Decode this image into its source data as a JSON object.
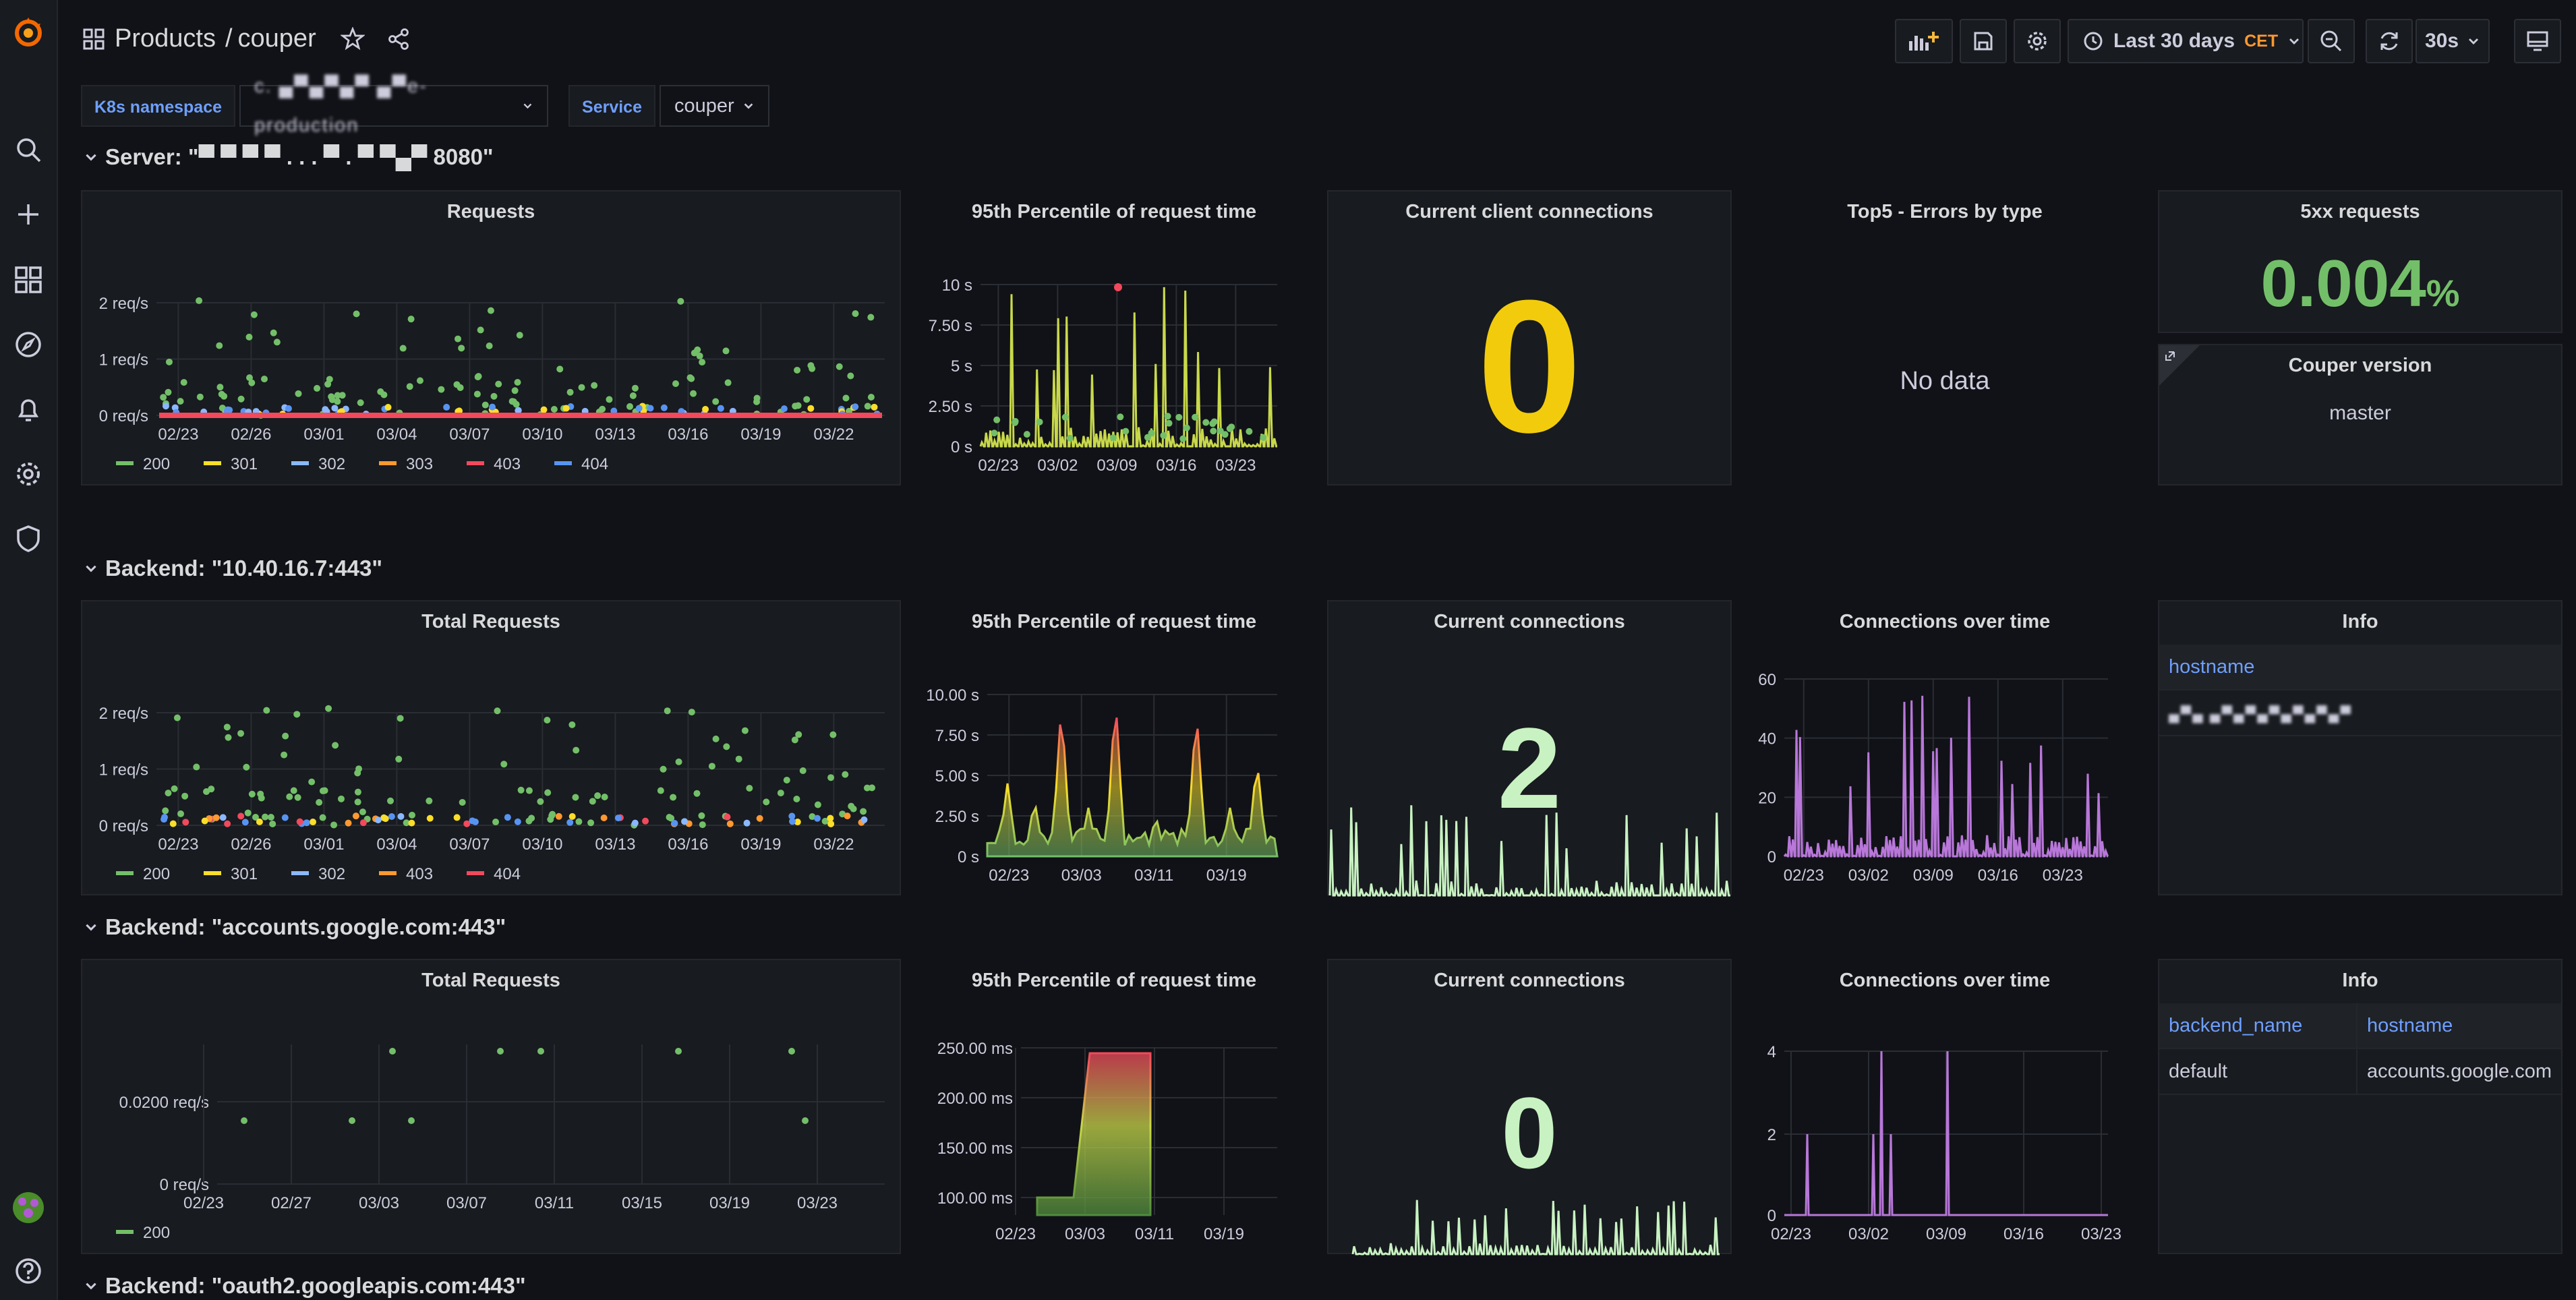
{
  "breadcrumb": {
    "folder": "Products",
    "separator": "/",
    "dashboard": "couper"
  },
  "toolbar": {
    "time_range": "Last 30 days",
    "timezone": "CET",
    "refresh": "30s"
  },
  "variables": [
    {
      "label": "K8s namespace",
      "value": "c.  ▄▀▄▀▄▀  ▄▀e-production"
    },
    {
      "label": "Service",
      "value": "couper"
    }
  ],
  "rows": {
    "server": "Server: \"▀ ▀   ▀  ▀ . . . ▀ . ▀   ▀▄▀   8080\"",
    "backend1": "Backend: \"10.40.16.7:443\"",
    "backend2": "Backend: \"accounts.google.com:443\"",
    "backend3": "Backend: \"oauth2.googleapis.com:443\""
  },
  "panels": {
    "requests": {
      "title": "Requests",
      "y_ticks": [
        "2 req/s",
        "1 req/s",
        "0 req/s"
      ],
      "x_ticks": [
        "02/23",
        "02/26",
        "03/01",
        "03/04",
        "03/07",
        "03/10",
        "03/13",
        "03/16",
        "03/19",
        "03/22"
      ],
      "legend": [
        {
          "name": "200",
          "color": "#73bf69"
        },
        {
          "name": "301",
          "color": "#fade2a"
        },
        {
          "name": "302",
          "color": "#8ab8ff"
        },
        {
          "name": "303",
          "color": "#ff9830"
        },
        {
          "name": "403",
          "color": "#f2495c"
        },
        {
          "name": "404",
          "color": "#5794f2"
        }
      ]
    },
    "p95_server": {
      "title": "95th Percentile of request time",
      "y_ticks": [
        "10 s",
        "7.50 s",
        "5 s",
        "2.50 s",
        "0 s"
      ],
      "x_ticks": [
        "02/23",
        "03/02",
        "03/09",
        "03/16",
        "03/23"
      ]
    },
    "client_conn": {
      "title": "Current client connections",
      "value": "0",
      "color": "#f2cc0c"
    },
    "top5": {
      "title": "Top5 - Errors by type",
      "no_data": "No data"
    },
    "s5xx": {
      "title": "5xx requests",
      "value": "0.004",
      "unit": "%",
      "color": "#73bf69"
    },
    "couper_version": {
      "title": "Couper version",
      "value": "master"
    },
    "b1_total": {
      "title": "Total Requests",
      "y_ticks": [
        "2 req/s",
        "1 req/s",
        "0 req/s"
      ],
      "x_ticks": [
        "02/23",
        "02/26",
        "03/01",
        "03/04",
        "03/07",
        "03/10",
        "03/13",
        "03/16",
        "03/19",
        "03/22"
      ],
      "legend": [
        {
          "name": "200",
          "color": "#73bf69"
        },
        {
          "name": "301",
          "color": "#fade2a"
        },
        {
          "name": "302",
          "color": "#8ab8ff"
        },
        {
          "name": "403",
          "color": "#ff9830"
        },
        {
          "name": "404",
          "color": "#f2495c"
        }
      ]
    },
    "b1_p95": {
      "title": "95th Percentile of request time",
      "y_ticks": [
        "10.00 s",
        "7.50 s",
        "5.00 s",
        "2.50 s",
        "0 s"
      ],
      "x_ticks": [
        "02/23",
        "03/03",
        "03/11",
        "03/19"
      ]
    },
    "b1_conn": {
      "title": "Current connections",
      "value": "2",
      "color": "#c8f2c2"
    },
    "b1_conn_time": {
      "title": "Connections over time",
      "y_ticks": [
        "60",
        "40",
        "20",
        "0"
      ],
      "x_ticks": [
        "02/23",
        "03/02",
        "03/09",
        "03/16",
        "03/23"
      ]
    },
    "b1_info": {
      "title": "Info",
      "col1": "hostname",
      "val1": "▄▀▄ ▄▀▄▀▄▀▄▀▄▀▄▀"
    },
    "b2_total": {
      "title": "Total Requests",
      "y_ticks": [
        "0.0200 req/s",
        "0 req/s"
      ],
      "x_ticks": [
        "02/23",
        "02/27",
        "03/03",
        "03/07",
        "03/11",
        "03/15",
        "03/19",
        "03/23"
      ],
      "legend": [
        {
          "name": "200",
          "color": "#73bf69"
        }
      ]
    },
    "b2_p95": {
      "title": "95th Percentile of request time",
      "y_ticks": [
        "250.00 ms",
        "200.00 ms",
        "150.00 ms",
        "100.00 ms"
      ],
      "x_ticks": [
        "02/23",
        "03/03",
        "03/11",
        "03/19"
      ]
    },
    "b2_conn": {
      "title": "Current connections",
      "value": "0",
      "color": "#c8f2c2"
    },
    "b2_conn_time": {
      "title": "Connections over time",
      "y_ticks": [
        "4",
        "2",
        "0"
      ],
      "x_ticks": [
        "02/23",
        "03/02",
        "03/09",
        "03/16",
        "03/23"
      ]
    },
    "b2_info": {
      "title": "Info",
      "col1": "backend_name",
      "col2": "hostname",
      "val1": "default",
      "val2": "accounts.google.com"
    }
  }
}
